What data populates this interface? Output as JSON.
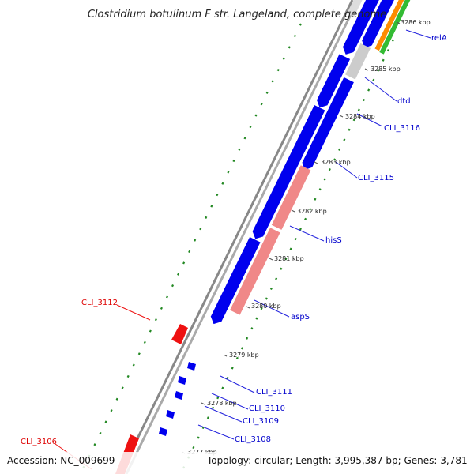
{
  "title": "Clostridium botulinum F str. Langeland, complete genome",
  "footer": {
    "accession": "Accession: NC_009699",
    "summary": "Topology: circular; Length: 3,995,387 bp; Genes: 3,781"
  },
  "colors": {
    "backbone": "#999999",
    "forward": "#0000ee",
    "reverse": "#ee1111",
    "pseudo": "#f08888",
    "grey": "#cccccc",
    "orange": "#ff8c00",
    "green": "#33bb33",
    "dot": "#228822",
    "line_fwd": "#2222dd",
    "line_rev": "#ee1111"
  },
  "kbp_ticks": [
    {
      "label": "3286 kbp"
    },
    {
      "label": "3285 kbp"
    },
    {
      "label": "3284 kbp"
    },
    {
      "label": "3283 kbp"
    },
    {
      "label": "3282 kbp"
    },
    {
      "label": "3281 kbp"
    },
    {
      "label": "3280 kbp"
    },
    {
      "label": "3279 kbp"
    },
    {
      "label": "3278 kbp"
    },
    {
      "label": "3277 kbp"
    }
  ],
  "gene_labels": [
    {
      "name": "relA",
      "strand": "forward"
    },
    {
      "name": "dtd",
      "strand": "forward"
    },
    {
      "name": "CLI_3116",
      "strand": "forward"
    },
    {
      "name": "CLI_3115",
      "strand": "forward"
    },
    {
      "name": "hisS",
      "strand": "forward"
    },
    {
      "name": "aspS",
      "strand": "forward"
    },
    {
      "name": "CLI_3111",
      "strand": "forward"
    },
    {
      "name": "CLI_3110",
      "strand": "forward"
    },
    {
      "name": "CLI_3109",
      "strand": "forward"
    },
    {
      "name": "CLI_3108",
      "strand": "forward"
    },
    {
      "name": "CLI_3112",
      "strand": "reverse"
    },
    {
      "name": "CLI_3106",
      "strand": "reverse"
    }
  ]
}
